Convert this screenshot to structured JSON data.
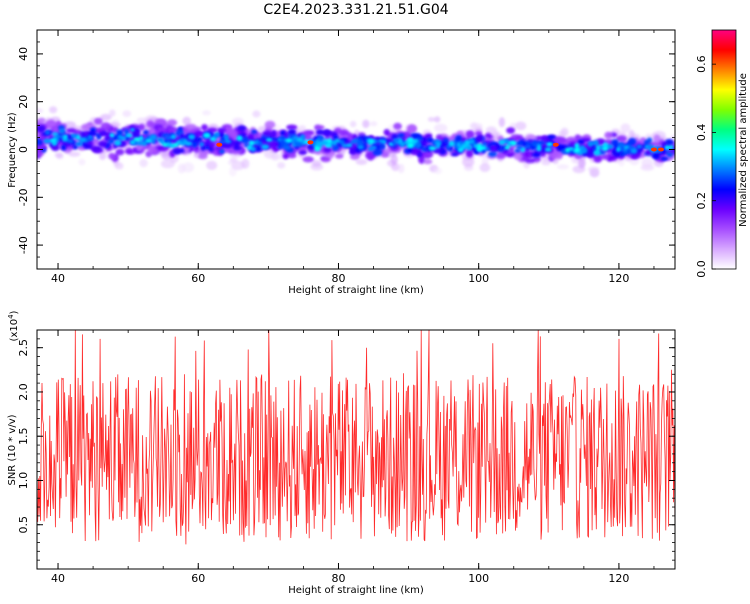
{
  "title": "C2E4.2023.331.21.51.G04",
  "colors": {
    "signal_line": "#ff2a2a",
    "colormap": [
      "#ffffff",
      "#d7a8ff",
      "#a64dff",
      "#6a00ff",
      "#0000ff",
      "#0080ff",
      "#00ffff",
      "#00ff80",
      "#80ff00",
      "#ffff00",
      "#ff8000",
      "#ff0000",
      "#ff0080"
    ]
  },
  "chart_data": [
    {
      "type": "heatmap",
      "title": "C2E4.2023.331.21.51.G04",
      "xlabel": "Height of straight line (km)",
      "ylabel": "Frequency (Hz)",
      "xlim": [
        37,
        128
      ],
      "ylim": [
        -50,
        50
      ],
      "xticks": [
        40,
        60,
        80,
        100,
        120
      ],
      "yticks": [
        -40,
        -20,
        0,
        20,
        40
      ],
      "colorbar": {
        "label": "Normalized spectral amplitude",
        "range": [
          0,
          0.7
        ],
        "ticks": [
          "0.0",
          "0.2",
          "0.4",
          "0.6"
        ],
        "tick_values": [
          0,
          0.2,
          0.4,
          0.6
        ]
      },
      "band": {
        "center_start_hz": 5,
        "center_end_hz": 0,
        "halfwidth_start_hz": 8,
        "halfwidth_end_hz": 5
      }
    },
    {
      "type": "line",
      "xlabel": "Height of straight line (km)",
      "ylabel": "SNR (10 * v/v)",
      "scale_label": "(x10",
      "scale_exponent": "4",
      "scale_suffix": ")",
      "xlim": [
        37,
        128
      ],
      "ylim": [
        0,
        2.7
      ],
      "xticks": [
        40,
        60,
        80,
        100,
        120
      ],
      "yticks": [
        "0.5",
        "1.0",
        "1.5",
        "2.0",
        "2.5"
      ],
      "ytick_values": [
        0.5,
        1.0,
        1.5,
        2.0,
        2.5
      ],
      "series": [
        {
          "color": "#ff2a2a",
          "mean": 1.25,
          "min": 0.1,
          "max": 2.7,
          "samples": 900,
          "peaks": [
            {
              "x": 42.5,
              "y": 2.7
            },
            {
              "x": 43.5,
              "y": 2.65
            },
            {
              "x": 46,
              "y": 2.6
            },
            {
              "x": 58,
              "y": 2.2
            },
            {
              "x": 84,
              "y": 2.5
            },
            {
              "x": 102,
              "y": 2.55
            },
            {
              "x": 120,
              "y": 2.6
            },
            {
              "x": 127.5,
              "y": 2.25
            }
          ]
        }
      ]
    }
  ]
}
